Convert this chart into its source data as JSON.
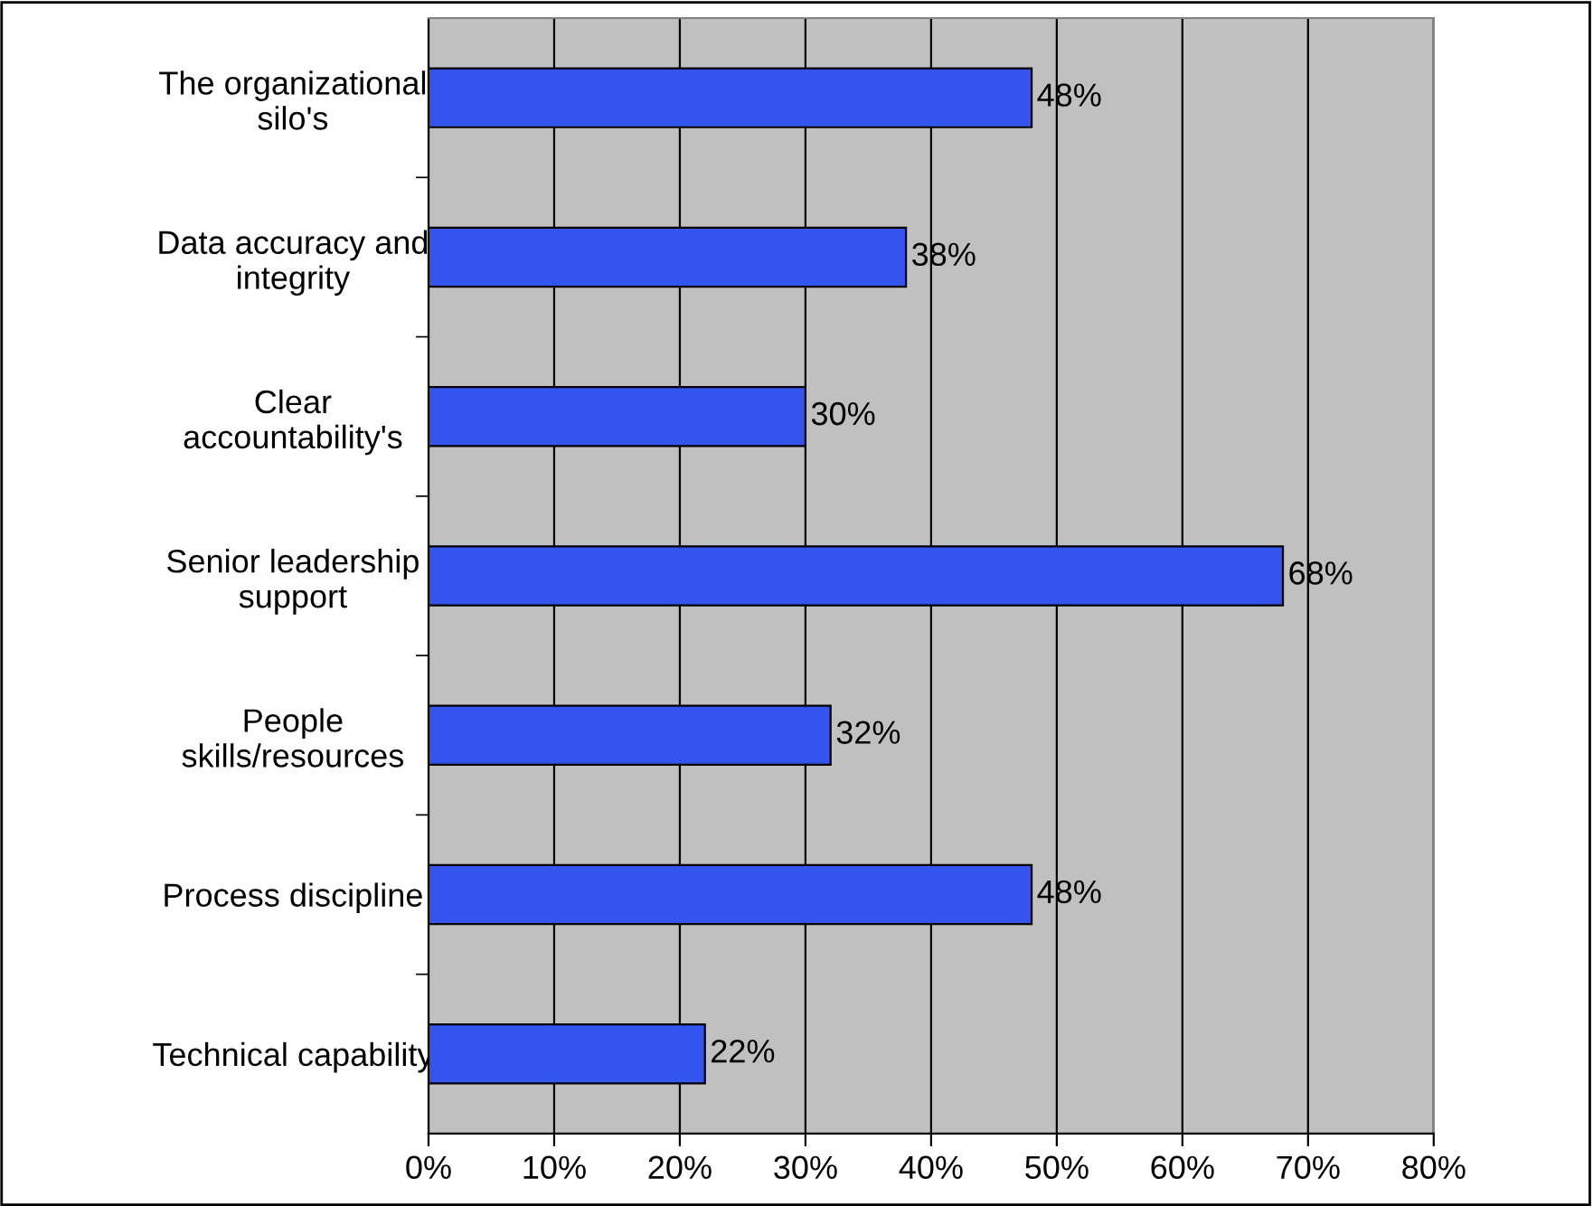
{
  "chart_data": {
    "type": "bar",
    "orientation": "horizontal",
    "categories": [
      "The organizational\nsilo's",
      "Data accuracy and\nintegrity",
      "Clear\naccountability's",
      "Senior leadership\nsupport",
      "People\nskills/resources",
      "Process discipline",
      "Technical capability"
    ],
    "values": [
      48,
      38,
      30,
      68,
      32,
      48,
      22
    ],
    "value_labels": [
      "48%",
      "38%",
      "30%",
      "68%",
      "32%",
      "48%",
      "22%"
    ],
    "color": "#3355ee",
    "xlim": [
      0,
      80
    ],
    "xticks": [
      {
        "value": 0,
        "label": "0%"
      },
      {
        "value": 10,
        "label": "10%"
      },
      {
        "value": 20,
        "label": "20%"
      },
      {
        "value": 30,
        "label": "30%"
      },
      {
        "value": 40,
        "label": "40%"
      },
      {
        "value": 50,
        "label": "50%"
      },
      {
        "value": 60,
        "label": "60%"
      },
      {
        "value": 70,
        "label": "70%"
      },
      {
        "value": 80,
        "label": "80%"
      }
    ],
    "grid": "x",
    "legend": false
  }
}
